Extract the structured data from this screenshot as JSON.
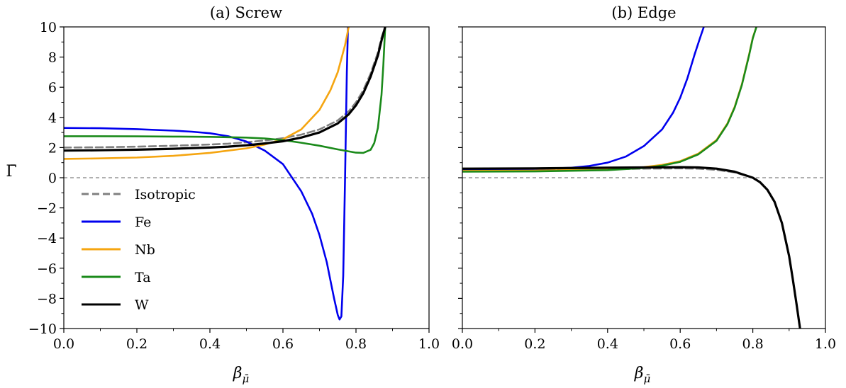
{
  "chart_data": [
    {
      "type": "line",
      "title": "(a) Screw",
      "xlabel": "β",
      "xlabel_sub": "μ̄",
      "ylabel": "Γ̄",
      "xlim": [
        0,
        1
      ],
      "ylim": [
        -10,
        10
      ],
      "xticks": [
        "0.0",
        "0.2",
        "0.4",
        "0.6",
        "0.8",
        "1.0"
      ],
      "yticks": [
        "−10",
        "−8",
        "−6",
        "−4",
        "−2",
        "0",
        "2",
        "4",
        "6",
        "8",
        "10"
      ],
      "reference_line": 0,
      "legend": {
        "placement": "lower-left",
        "entries": [
          "Isotropic",
          "Fe",
          "Nb",
          "Ta",
          "W"
        ]
      },
      "series": [
        {
          "name": "Isotropic",
          "color": "#808080",
          "dashed": true,
          "x": [
            0,
            0.1,
            0.2,
            0.3,
            0.4,
            0.45,
            0.5,
            0.55,
            0.6,
            0.65,
            0.7,
            0.75,
            0.78,
            0.8,
            0.82,
            0.84,
            0.86,
            0.87,
            0.88
          ],
          "y": [
            2.0,
            2.02,
            2.06,
            2.12,
            2.2,
            2.26,
            2.35,
            2.47,
            2.62,
            2.86,
            3.2,
            3.8,
            4.4,
            5.0,
            5.8,
            6.9,
            8.3,
            9.3,
            10.0
          ]
        },
        {
          "name": "Fe",
          "color": "#0000ee",
          "dashed": false,
          "x": [
            0,
            0.1,
            0.2,
            0.3,
            0.35,
            0.4,
            0.45,
            0.5,
            0.55,
            0.6,
            0.65,
            0.68,
            0.7,
            0.72,
            0.73,
            0.74,
            0.75,
            0.755,
            0.76,
            0.765,
            0.77,
            0.775,
            0.778
          ],
          "y": [
            3.3,
            3.28,
            3.22,
            3.12,
            3.05,
            2.95,
            2.75,
            2.4,
            1.8,
            0.9,
            -0.9,
            -2.4,
            -3.8,
            -5.6,
            -6.8,
            -8.0,
            -9.1,
            -9.4,
            -9.2,
            -6.5,
            0.0,
            7.0,
            10.0
          ]
        },
        {
          "name": "Nb",
          "color": "#f5a510",
          "dashed": false,
          "x": [
            0,
            0.1,
            0.2,
            0.3,
            0.4,
            0.5,
            0.55,
            0.6,
            0.65,
            0.7,
            0.73,
            0.75,
            0.77,
            0.78
          ],
          "y": [
            1.25,
            1.28,
            1.34,
            1.45,
            1.65,
            1.95,
            2.2,
            2.55,
            3.2,
            4.5,
            5.8,
            7.0,
            8.8,
            10.0
          ]
        },
        {
          "name": "Ta",
          "color": "#1a8a1a",
          "dashed": false,
          "x": [
            0,
            0.1,
            0.2,
            0.3,
            0.4,
            0.5,
            0.55,
            0.6,
            0.65,
            0.7,
            0.75,
            0.8,
            0.82,
            0.84,
            0.85,
            0.86,
            0.87,
            0.875,
            0.88
          ],
          "y": [
            2.75,
            2.75,
            2.74,
            2.73,
            2.71,
            2.66,
            2.6,
            2.5,
            2.32,
            2.12,
            1.88,
            1.66,
            1.65,
            1.85,
            2.3,
            3.3,
            5.5,
            7.5,
            10.0
          ]
        },
        {
          "name": "W",
          "color": "#000000",
          "dashed": false,
          "x": [
            0,
            0.1,
            0.2,
            0.3,
            0.4,
            0.45,
            0.5,
            0.55,
            0.6,
            0.65,
            0.7,
            0.75,
            0.78,
            0.8,
            0.82,
            0.84,
            0.86,
            0.87,
            0.88
          ],
          "y": [
            1.8,
            1.82,
            1.86,
            1.92,
            2.0,
            2.06,
            2.15,
            2.27,
            2.42,
            2.66,
            3.0,
            3.6,
            4.2,
            4.8,
            5.6,
            6.7,
            8.1,
            9.1,
            10.0
          ]
        }
      ]
    },
    {
      "type": "line",
      "title": "(b) Edge",
      "xlabel": "β",
      "xlabel_sub": "μ̄",
      "xlim": [
        0,
        1
      ],
      "ylim": [
        -10,
        10
      ],
      "xticks": [
        "0.0",
        "0.2",
        "0.4",
        "0.6",
        "0.8",
        "1.0"
      ],
      "reference_line": 0,
      "series": [
        {
          "name": "Isotropic",
          "color": "#808080",
          "dashed": true,
          "x": [
            0,
            0.2,
            0.4,
            0.5,
            0.6,
            0.65,
            0.7,
            0.75,
            0.8,
            0.82,
            0.84,
            0.86,
            0.88,
            0.9,
            0.91,
            0.92,
            0.93
          ],
          "y": [
            0.5,
            0.52,
            0.56,
            0.6,
            0.62,
            0.6,
            0.52,
            0.35,
            0.0,
            -0.3,
            -0.8,
            -1.6,
            -3.0,
            -5.2,
            -6.7,
            -8.3,
            -10.0
          ]
        },
        {
          "name": "Fe",
          "color": "#0000ee",
          "dashed": false,
          "x": [
            0,
            0.1,
            0.2,
            0.3,
            0.35,
            0.4,
            0.45,
            0.5,
            0.55,
            0.58,
            0.6,
            0.62,
            0.64,
            0.655,
            0.665
          ],
          "y": [
            0.55,
            0.56,
            0.58,
            0.66,
            0.78,
            1.0,
            1.4,
            2.1,
            3.2,
            4.3,
            5.3,
            6.6,
            8.2,
            9.3,
            10.0
          ]
        },
        {
          "name": "Nb",
          "color": "#f5a510",
          "dashed": false,
          "x": [
            0,
            0.2,
            0.4,
            0.5,
            0.55,
            0.6,
            0.65,
            0.7,
            0.73,
            0.75,
            0.77,
            0.79,
            0.8,
            0.81
          ],
          "y": [
            0.45,
            0.47,
            0.55,
            0.7,
            0.85,
            1.1,
            1.6,
            2.5,
            3.6,
            4.7,
            6.2,
            8.2,
            9.3,
            10.0
          ]
        },
        {
          "name": "Ta",
          "color": "#1a8a1a",
          "dashed": false,
          "x": [
            0,
            0.2,
            0.4,
            0.5,
            0.55,
            0.6,
            0.65,
            0.7,
            0.73,
            0.75,
            0.77,
            0.79,
            0.8,
            0.81
          ],
          "y": [
            0.4,
            0.42,
            0.5,
            0.65,
            0.8,
            1.05,
            1.55,
            2.45,
            3.55,
            4.65,
            6.15,
            8.15,
            9.25,
            10.0
          ]
        },
        {
          "name": "W",
          "color": "#000000",
          "dashed": false,
          "x": [
            0,
            0.2,
            0.4,
            0.5,
            0.6,
            0.65,
            0.7,
            0.75,
            0.8,
            0.82,
            0.84,
            0.86,
            0.88,
            0.9,
            0.91,
            0.92,
            0.93
          ],
          "y": [
            0.6,
            0.62,
            0.66,
            0.68,
            0.7,
            0.68,
            0.6,
            0.4,
            0.0,
            -0.3,
            -0.8,
            -1.6,
            -3.0,
            -5.2,
            -6.7,
            -8.3,
            -10.0
          ]
        }
      ]
    }
  ]
}
